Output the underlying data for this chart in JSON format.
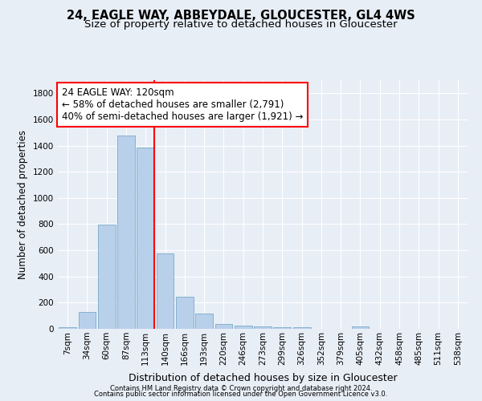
{
  "title1": "24, EAGLE WAY, ABBEYDALE, GLOUCESTER, GL4 4WS",
  "title2": "Size of property relative to detached houses in Gloucester",
  "xlabel": "Distribution of detached houses by size in Gloucester",
  "ylabel": "Number of detached properties",
  "footnote1": "Contains HM Land Registry data © Crown copyright and database right 2024.",
  "footnote2": "Contains public sector information licensed under the Open Government Licence v3.0.",
  "bar_labels": [
    "7sqm",
    "34sqm",
    "60sqm",
    "87sqm",
    "113sqm",
    "140sqm",
    "166sqm",
    "193sqm",
    "220sqm",
    "246sqm",
    "273sqm",
    "299sqm",
    "326sqm",
    "352sqm",
    "379sqm",
    "405sqm",
    "432sqm",
    "458sqm",
    "485sqm",
    "511sqm",
    "538sqm"
  ],
  "bar_values": [
    10,
    130,
    795,
    1475,
    1385,
    575,
    248,
    115,
    35,
    25,
    20,
    15,
    10,
    0,
    0,
    20,
    0,
    0,
    0,
    0,
    0
  ],
  "bar_color": "#b8d0ea",
  "bar_edge_color": "#7aaac8",
  "vline_x": 4.45,
  "vline_color": "red",
  "annotation_title": "24 EAGLE WAY: 120sqm",
  "annotation_line1": "← 58% of detached houses are smaller (2,791)",
  "annotation_line2": "40% of semi-detached houses are larger (1,921) →",
  "annotation_box_facecolor": "white",
  "annotation_box_edgecolor": "red",
  "ylim": [
    0,
    1900
  ],
  "yticks": [
    0,
    200,
    400,
    600,
    800,
    1000,
    1200,
    1400,
    1600,
    1800
  ],
  "bg_color": "#e8eef6",
  "grid_color": "white",
  "title1_fontsize": 10.5,
  "title2_fontsize": 9.5,
  "xlabel_fontsize": 9,
  "ylabel_fontsize": 8.5,
  "tick_fontsize": 7.5,
  "annot_fontsize": 8.5,
  "footnote_fontsize": 6
}
